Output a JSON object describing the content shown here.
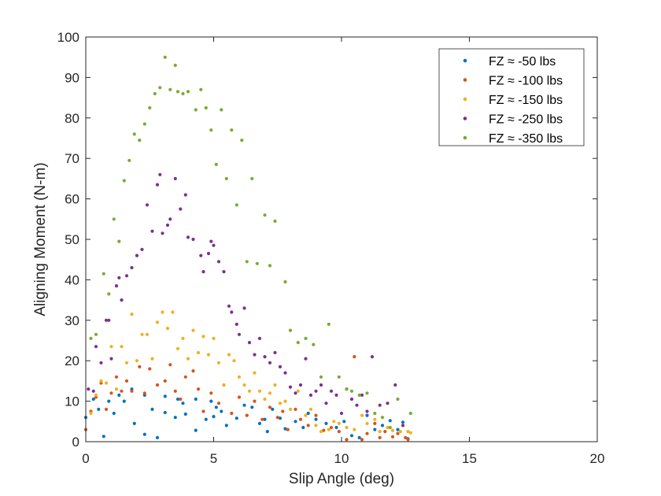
{
  "chart_data": {
    "type": "scatter",
    "title": "",
    "xlabel": "Slip Angle (deg)",
    "ylabel": "Aligning Moment (N-m)",
    "xlim": [
      0,
      20
    ],
    "ylim": [
      0,
      100
    ],
    "xticks": [
      "0",
      "5",
      "10",
      "15",
      "20"
    ],
    "yticks": [
      "0",
      "10",
      "20",
      "30",
      "40",
      "50",
      "60",
      "70",
      "80",
      "90",
      "100"
    ],
    "grid": false,
    "legend_position": "top-right",
    "series": [
      {
        "name": "FZ ≈ -50 lbs",
        "color": "#0072BD",
        "points": [
          [
            0.0,
            6.0
          ],
          [
            0.3,
            10.5
          ],
          [
            0.5,
            8.0
          ],
          [
            0.7,
            1.3
          ],
          [
            0.9,
            10.0
          ],
          [
            1.1,
            7.0
          ],
          [
            1.3,
            11.5
          ],
          [
            1.5,
            10.0
          ],
          [
            1.8,
            13.0
          ],
          [
            1.9,
            4.5
          ],
          [
            2.3,
            11.5
          ],
          [
            2.3,
            1.8
          ],
          [
            2.6,
            8.0
          ],
          [
            2.8,
            1.0
          ],
          [
            3.1,
            11.2
          ],
          [
            3.1,
            7.2
          ],
          [
            3.5,
            6.0
          ],
          [
            3.6,
            10.5
          ],
          [
            3.8,
            9.5
          ],
          [
            3.9,
            6.8
          ],
          [
            4.3,
            10.5
          ],
          [
            4.3,
            2.8
          ],
          [
            4.7,
            5.5
          ],
          [
            4.9,
            10.0
          ],
          [
            5.0,
            6.2
          ],
          [
            5.1,
            8.5
          ],
          [
            5.3,
            7.5
          ],
          [
            5.5,
            4.0
          ],
          [
            5.9,
            5.8
          ],
          [
            6.2,
            9.0
          ],
          [
            6.5,
            8.5
          ],
          [
            6.8,
            4.5
          ],
          [
            7.0,
            5.5
          ],
          [
            7.1,
            2.5
          ],
          [
            7.3,
            8.0
          ],
          [
            7.6,
            5.8
          ],
          [
            7.8,
            3.2
          ],
          [
            8.2,
            5.0
          ],
          [
            8.5,
            3.5
          ],
          [
            8.7,
            7.0
          ],
          [
            9.0,
            5.5
          ],
          [
            9.4,
            4.5
          ],
          [
            9.8,
            3.5
          ],
          [
            10.1,
            5.0
          ],
          [
            10.4,
            1.5
          ],
          [
            10.7,
            1.0
          ],
          [
            11.0,
            6.5
          ],
          [
            11.3,
            3.0
          ],
          [
            11.6,
            4.0
          ],
          [
            11.9,
            5.2
          ],
          [
            12.2,
            3.0
          ],
          [
            12.4,
            4.8
          ],
          [
            12.6,
            0.7
          ]
        ]
      },
      {
        "name": "FZ ≈ -100 lbs",
        "color": "#D95319",
        "points": [
          [
            0.0,
            3.0
          ],
          [
            0.2,
            7.5
          ],
          [
            0.4,
            11.0
          ],
          [
            0.6,
            14.5
          ],
          [
            0.8,
            8.0
          ],
          [
            1.0,
            12.0
          ],
          [
            1.2,
            16.0
          ],
          [
            1.4,
            12.5
          ],
          [
            1.6,
            15.0
          ],
          [
            1.8,
            12.5
          ],
          [
            2.1,
            18.5
          ],
          [
            2.3,
            12.0
          ],
          [
            2.5,
            18.0
          ],
          [
            2.8,
            14.0
          ],
          [
            3.1,
            15.0
          ],
          [
            3.3,
            19.0
          ],
          [
            3.5,
            12.5
          ],
          [
            3.7,
            10.5
          ],
          [
            3.9,
            16.0
          ],
          [
            4.2,
            17.5
          ],
          [
            4.4,
            13.0
          ],
          [
            4.6,
            7.5
          ],
          [
            4.9,
            12.0
          ],
          [
            5.2,
            9.5
          ],
          [
            5.4,
            14.0
          ],
          [
            5.7,
            7.0
          ],
          [
            6.0,
            11.0
          ],
          [
            6.3,
            6.5
          ],
          [
            6.6,
            10.0
          ],
          [
            6.9,
            5.5
          ],
          [
            7.2,
            8.5
          ],
          [
            7.5,
            6.0
          ],
          [
            7.7,
            7.5
          ],
          [
            7.9,
            3.0
          ],
          [
            8.2,
            8.0
          ],
          [
            8.4,
            5.5
          ],
          [
            8.7,
            4.0
          ],
          [
            9.0,
            6.5
          ],
          [
            9.3,
            2.8
          ],
          [
            9.6,
            3.5
          ],
          [
            9.9,
            2.5
          ],
          [
            10.2,
            0.5
          ],
          [
            10.5,
            21.0
          ],
          [
            10.8,
            0.5
          ],
          [
            11.0,
            2.0
          ],
          [
            11.3,
            4.5
          ],
          [
            11.5,
            1.0
          ],
          [
            11.7,
            2.5
          ],
          [
            12.0,
            1.2
          ],
          [
            12.2,
            2.0
          ],
          [
            12.5,
            1.0
          ],
          [
            12.6,
            0.5
          ]
        ]
      },
      {
        "name": "FZ ≈ -150 lbs",
        "color": "#EDB120",
        "points": [
          [
            0.2,
            7.0
          ],
          [
            0.4,
            11.5
          ],
          [
            0.6,
            15.0
          ],
          [
            0.8,
            14.5
          ],
          [
            1.0,
            23.5
          ],
          [
            1.2,
            13.0
          ],
          [
            1.4,
            23.5
          ],
          [
            1.6,
            19.5
          ],
          [
            1.8,
            31.5
          ],
          [
            2.0,
            20.0
          ],
          [
            2.2,
            26.5
          ],
          [
            2.4,
            26.5
          ],
          [
            2.6,
            20.5
          ],
          [
            2.8,
            29.5
          ],
          [
            3.0,
            32.0
          ],
          [
            3.2,
            28.0
          ],
          [
            3.4,
            32.0
          ],
          [
            3.6,
            23.0
          ],
          [
            3.8,
            25.5
          ],
          [
            4.0,
            20.5
          ],
          [
            4.2,
            27.5
          ],
          [
            4.4,
            22.0
          ],
          [
            4.6,
            26.0
          ],
          [
            4.8,
            21.5
          ],
          [
            5.0,
            25.5
          ],
          [
            5.2,
            19.5
          ],
          [
            5.4,
            14.0
          ],
          [
            5.6,
            21.5
          ],
          [
            5.8,
            20.0
          ],
          [
            6.0,
            16.0
          ],
          [
            6.2,
            14.0
          ],
          [
            6.4,
            12.5
          ],
          [
            6.6,
            17.0
          ],
          [
            6.8,
            12.5
          ],
          [
            7.0,
            10.5
          ],
          [
            7.2,
            12.0
          ],
          [
            7.4,
            14.0
          ],
          [
            7.6,
            9.5
          ],
          [
            7.8,
            10.0
          ],
          [
            8.0,
            8.0
          ],
          [
            8.3,
            12.5
          ],
          [
            8.6,
            6.5
          ],
          [
            8.8,
            8.0
          ],
          [
            9.0,
            4.0
          ],
          [
            9.2,
            2.5
          ],
          [
            9.5,
            3.0
          ],
          [
            9.7,
            5.0
          ],
          [
            9.9,
            4.5
          ],
          [
            10.2,
            3.5
          ],
          [
            10.5,
            3.0
          ],
          [
            10.8,
            6.5
          ],
          [
            11.0,
            4.5
          ],
          [
            11.3,
            5.5
          ],
          [
            11.5,
            2.5
          ],
          [
            11.8,
            3.5
          ],
          [
            12.0,
            2.8
          ],
          [
            12.3,
            2.5
          ],
          [
            12.6,
            2.5
          ],
          [
            12.7,
            2.2
          ]
        ]
      },
      {
        "name": "FZ ≈ -250 lbs",
        "color": "#7E2F8E",
        "points": [
          [
            0.1,
            13.0
          ],
          [
            0.3,
            12.5
          ],
          [
            0.4,
            23.5
          ],
          [
            0.6,
            19.5
          ],
          [
            0.8,
            30.0
          ],
          [
            0.9,
            30.0
          ],
          [
            1.0,
            20.5
          ],
          [
            1.2,
            38.5
          ],
          [
            1.3,
            40.5
          ],
          [
            1.4,
            35.0
          ],
          [
            1.6,
            41.0
          ],
          [
            1.8,
            43.0
          ],
          [
            2.0,
            46.0
          ],
          [
            2.2,
            47.5
          ],
          [
            2.4,
            58.5
          ],
          [
            2.6,
            52.0
          ],
          [
            2.8,
            63.5
          ],
          [
            2.9,
            66.0
          ],
          [
            3.0,
            51.5
          ],
          [
            3.2,
            53.5
          ],
          [
            3.3,
            55.0
          ],
          [
            3.5,
            65.0
          ],
          [
            3.7,
            57.5
          ],
          [
            3.9,
            61.0
          ],
          [
            4.0,
            50.5
          ],
          [
            4.2,
            50.0
          ],
          [
            4.5,
            46.0
          ],
          [
            4.6,
            42.0
          ],
          [
            4.8,
            46.5
          ],
          [
            4.9,
            49.5
          ],
          [
            5.0,
            48.5
          ],
          [
            5.2,
            44.5
          ],
          [
            5.4,
            42.0
          ],
          [
            5.6,
            33.5
          ],
          [
            5.7,
            32.0
          ],
          [
            5.9,
            29.0
          ],
          [
            6.0,
            26.5
          ],
          [
            6.2,
            33.0
          ],
          [
            6.4,
            24.5
          ],
          [
            6.6,
            21.5
          ],
          [
            6.8,
            25.5
          ],
          [
            7.0,
            21.0
          ],
          [
            7.2,
            19.5
          ],
          [
            7.4,
            22.0
          ],
          [
            7.6,
            18.5
          ],
          [
            7.8,
            17.0
          ],
          [
            8.0,
            13.5
          ],
          [
            8.2,
            12.0
          ],
          [
            8.4,
            14.0
          ],
          [
            8.6,
            20.5
          ],
          [
            8.8,
            11.5
          ],
          [
            9.0,
            12.5
          ],
          [
            9.2,
            14.0
          ],
          [
            9.4,
            9.5
          ],
          [
            9.6,
            12.5
          ],
          [
            9.8,
            11.5
          ],
          [
            10.0,
            7.0
          ],
          [
            10.2,
            13.0
          ],
          [
            10.4,
            10.5
          ],
          [
            10.6,
            9.0
          ],
          [
            10.8,
            11.5
          ],
          [
            11.0,
            7.5
          ],
          [
            11.2,
            21.0
          ],
          [
            11.5,
            9.0
          ],
          [
            11.8,
            9.5
          ],
          [
            12.1,
            14.0
          ],
          [
            12.4,
            4.0
          ]
        ]
      },
      {
        "name": "FZ ≈ -350 lbs",
        "color": "#77AC30",
        "points": [
          [
            0.2,
            25.5
          ],
          [
            0.4,
            26.5
          ],
          [
            0.7,
            41.5
          ],
          [
            0.9,
            36.5
          ],
          [
            1.1,
            55.0
          ],
          [
            1.3,
            49.5
          ],
          [
            1.5,
            64.5
          ],
          [
            1.7,
            69.5
          ],
          [
            1.9,
            76.0
          ],
          [
            2.1,
            74.5
          ],
          [
            2.3,
            78.5
          ],
          [
            2.5,
            82.5
          ],
          [
            2.7,
            86.0
          ],
          [
            2.9,
            87.5
          ],
          [
            3.1,
            95.0
          ],
          [
            3.3,
            87.0
          ],
          [
            3.5,
            93.0
          ],
          [
            3.6,
            86.5
          ],
          [
            3.8,
            86.0
          ],
          [
            4.0,
            86.5
          ],
          [
            4.3,
            82.0
          ],
          [
            4.5,
            87.0
          ],
          [
            4.7,
            82.5
          ],
          [
            4.9,
            77.0
          ],
          [
            5.1,
            68.5
          ],
          [
            5.3,
            82.0
          ],
          [
            5.5,
            65.0
          ],
          [
            5.7,
            77.0
          ],
          [
            5.9,
            58.5
          ],
          [
            6.1,
            74.5
          ],
          [
            6.3,
            44.5
          ],
          [
            6.5,
            65.0
          ],
          [
            6.7,
            44.0
          ],
          [
            7.0,
            56.0
          ],
          [
            7.2,
            43.5
          ],
          [
            7.4,
            54.5
          ],
          [
            7.8,
            39.5
          ],
          [
            8.0,
            27.5
          ],
          [
            8.3,
            24.5
          ],
          [
            8.6,
            25.5
          ],
          [
            8.9,
            24.0
          ],
          [
            9.2,
            16.0
          ],
          [
            9.5,
            29.0
          ],
          [
            9.9,
            16.0
          ],
          [
            10.2,
            13.0
          ],
          [
            10.4,
            12.5
          ],
          [
            10.7,
            11.5
          ],
          [
            11.0,
            12.0
          ],
          [
            11.3,
            7.0
          ],
          [
            11.6,
            6.0
          ],
          [
            11.9,
            3.5
          ],
          [
            12.2,
            10.5
          ],
          [
            12.7,
            7.0
          ]
        ]
      }
    ]
  }
}
